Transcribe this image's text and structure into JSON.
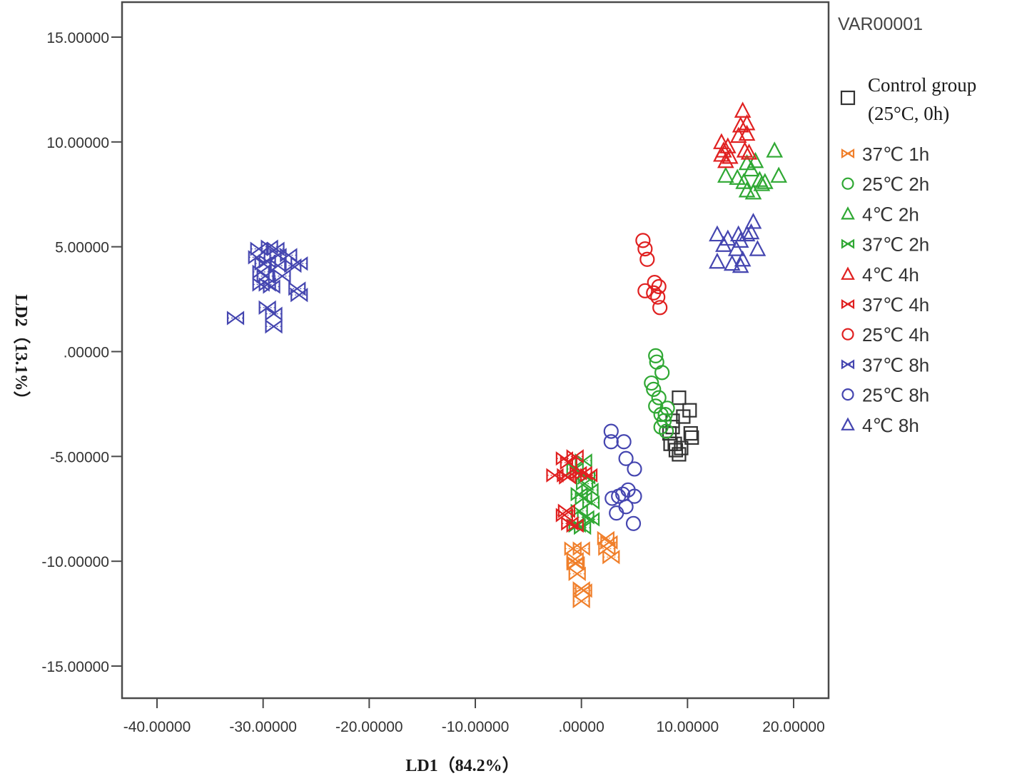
{
  "chart_data": {
    "type": "scatter",
    "title": "",
    "xlabel": "LD1（84.2%）",
    "ylabel": "LD2（13.1%）",
    "xlim": [
      -43.5,
      23.0
    ],
    "ylim": [
      -16.8,
      16.6
    ],
    "xticks": [
      -40,
      -30,
      -20,
      -10,
      0,
      10,
      20
    ],
    "xtick_labels": [
      "-40.00000",
      "-30.00000",
      "-20.00000",
      "-10.00000",
      ".00000",
      "10.00000",
      "20.00000"
    ],
    "yticks": [
      15,
      10,
      5,
      0,
      -5,
      -10,
      -15
    ],
    "ytick_labels": [
      "15.00000",
      "10.00000",
      "5.00000",
      ".00000",
      "-5.00000",
      "-10.00000",
      "-15.00000"
    ],
    "grid": false,
    "legend_title": "VAR00001",
    "legend_position": "right",
    "series": [
      {
        "name": "Control group (25°C, 0h)",
        "legend_lines": [
          "Control group",
          "(25°C, 0h)"
        ],
        "marker": "square",
        "color": "#333333",
        "points": [
          [
            9.2,
            -2.2
          ],
          [
            10.2,
            -2.8
          ],
          [
            9.6,
            -3.1
          ],
          [
            8.6,
            -3.3
          ],
          [
            10.3,
            -3.9
          ],
          [
            10.4,
            -4.1
          ],
          [
            8.3,
            -3.9
          ],
          [
            8.8,
            -4.4
          ],
          [
            9.4,
            -4.6
          ],
          [
            8.4,
            -4.4
          ],
          [
            9.2,
            -4.9
          ],
          [
            8.9,
            -4.7
          ],
          [
            8.6,
            -3.6
          ]
        ]
      },
      {
        "name": "37℃ 1h",
        "marker": "bowtie",
        "color": "#f07f2a",
        "points": [
          [
            -0.8,
            -9.4
          ],
          [
            0.0,
            -9.4
          ],
          [
            -0.6,
            -10.1
          ],
          [
            -0.4,
            -10.6
          ],
          [
            -0.5,
            -10.1
          ],
          [
            0.0,
            -11.3
          ],
          [
            0.2,
            -11.4
          ],
          [
            0.0,
            -11.9
          ],
          [
            2.3,
            -8.9
          ],
          [
            2.6,
            -9.1
          ],
          [
            2.4,
            -9.4
          ],
          [
            2.8,
            -9.8
          ],
          [
            -0.6,
            -9.9
          ]
        ]
      },
      {
        "name": "25℃ 2h",
        "marker": "circle",
        "color": "#2fa833",
        "points": [
          [
            7.0,
            -0.2
          ],
          [
            7.1,
            -0.5
          ],
          [
            7.6,
            -1.0
          ],
          [
            6.6,
            -1.5
          ],
          [
            6.8,
            -1.8
          ],
          [
            7.3,
            -2.2
          ],
          [
            7.0,
            -2.6
          ],
          [
            7.5,
            -3.0
          ],
          [
            7.9,
            -3.0
          ],
          [
            8.1,
            -2.7
          ],
          [
            7.8,
            -3.3
          ],
          [
            7.5,
            -3.6
          ],
          [
            8.0,
            -3.8
          ]
        ]
      },
      {
        "name": "4℃   2h",
        "marker": "triangle",
        "color": "#2fa833",
        "points": [
          [
            18.2,
            9.6
          ],
          [
            15.6,
            9.0
          ],
          [
            16.4,
            9.1
          ],
          [
            16.0,
            8.7
          ],
          [
            13.6,
            8.4
          ],
          [
            15.3,
            8.1
          ],
          [
            17.0,
            8.0
          ],
          [
            17.3,
            8.1
          ],
          [
            18.6,
            8.4
          ],
          [
            15.6,
            7.7
          ],
          [
            16.2,
            7.6
          ],
          [
            14.7,
            8.3
          ],
          [
            16.8,
            8.2
          ]
        ]
      },
      {
        "name": "37℃ 2h",
        "marker": "bowtie",
        "color": "#2fa833",
        "points": [
          [
            0.2,
            -5.2
          ],
          [
            -0.6,
            -5.6
          ],
          [
            0.3,
            -6.3
          ],
          [
            0.8,
            -6.6
          ],
          [
            -0.2,
            -6.8
          ],
          [
            0.2,
            -7.0
          ],
          [
            0.9,
            -7.2
          ],
          [
            -0.2,
            -7.6
          ],
          [
            0.4,
            -7.9
          ],
          [
            0.9,
            -8.0
          ],
          [
            0.1,
            -8.4
          ],
          [
            -0.4,
            -8.3
          ],
          [
            0.5,
            -6.0
          ]
        ]
      },
      {
        "name": "4℃   4h",
        "marker": "triangle",
        "color": "#e02020",
        "points": [
          [
            15.2,
            11.5
          ],
          [
            15.0,
            10.8
          ],
          [
            15.6,
            10.9
          ],
          [
            14.8,
            10.3
          ],
          [
            15.6,
            10.4
          ],
          [
            13.2,
            10.0
          ],
          [
            13.2,
            9.4
          ],
          [
            14.0,
            9.3
          ],
          [
            13.6,
            9.1
          ],
          [
            15.4,
            9.6
          ],
          [
            15.8,
            9.5
          ],
          [
            13.8,
            9.8
          ],
          [
            13.4,
            9.6
          ]
        ]
      },
      {
        "name": "37℃ 4h",
        "marker": "bowtie",
        "color": "#e02020",
        "points": [
          [
            -1.6,
            -5.1
          ],
          [
            -0.6,
            -5.0
          ],
          [
            -1.2,
            -5.3
          ],
          [
            -2.5,
            -5.9
          ],
          [
            -1.3,
            -6.0
          ],
          [
            -0.3,
            -5.8
          ],
          [
            0.2,
            -5.8
          ],
          [
            0.7,
            -5.9
          ],
          [
            -1.5,
            -5.9
          ],
          [
            -1.4,
            -7.6
          ],
          [
            -1.6,
            -7.8
          ],
          [
            -1.1,
            -8.2
          ],
          [
            -0.6,
            -8.3
          ]
        ]
      },
      {
        "name": "25℃ 4h",
        "marker": "circle",
        "color": "#e02020",
        "points": [
          [
            5.8,
            5.3
          ],
          [
            6.0,
            4.9
          ],
          [
            6.2,
            4.4
          ],
          [
            6.9,
            3.3
          ],
          [
            7.3,
            3.1
          ],
          [
            6.0,
            2.9
          ],
          [
            6.8,
            2.8
          ],
          [
            7.2,
            2.6
          ],
          [
            7.4,
            2.1
          ]
        ]
      },
      {
        "name": "37℃ 8h",
        "marker": "bowtie",
        "color": "#4546b0",
        "points": [
          [
            -30.4,
            4.9
          ],
          [
            -29.4,
            5.0
          ],
          [
            -28.8,
            4.9
          ],
          [
            -27.6,
            4.6
          ],
          [
            -30.6,
            4.5
          ],
          [
            -29.6,
            4.3
          ],
          [
            -28.6,
            4.1
          ],
          [
            -27.2,
            4.1
          ],
          [
            -26.6,
            4.2
          ],
          [
            -30.2,
            3.8
          ],
          [
            -29.8,
            3.6
          ],
          [
            -28.2,
            3.6
          ],
          [
            -30.2,
            3.2
          ],
          [
            -29.6,
            3.2
          ],
          [
            -29.2,
            3.1
          ],
          [
            -26.8,
            3.0
          ],
          [
            -26.6,
            2.7
          ],
          [
            -29.6,
            2.1
          ],
          [
            -29.0,
            1.8
          ],
          [
            -32.6,
            1.6
          ],
          [
            -29.0,
            1.2
          ],
          [
            -28.6,
            4.6
          ],
          [
            -30.0,
            4.2
          ]
        ]
      },
      {
        "name": "25℃ 8h",
        "marker": "circle",
        "color": "#4546b0",
        "points": [
          [
            2.8,
            -3.8
          ],
          [
            2.8,
            -4.3
          ],
          [
            4.0,
            -4.3
          ],
          [
            4.2,
            -5.1
          ],
          [
            5.0,
            -5.6
          ],
          [
            2.9,
            -7.0
          ],
          [
            4.4,
            -6.6
          ],
          [
            3.5,
            -6.9
          ],
          [
            5.0,
            -6.9
          ],
          [
            4.2,
            -7.4
          ],
          [
            3.3,
            -7.7
          ],
          [
            4.9,
            -8.2
          ],
          [
            3.9,
            -6.8
          ]
        ]
      },
      {
        "name": "4℃   8h",
        "marker": "triangle",
        "color": "#4546b0",
        "points": [
          [
            16.2,
            6.2
          ],
          [
            16.0,
            5.7
          ],
          [
            12.8,
            5.6
          ],
          [
            13.8,
            5.4
          ],
          [
            14.8,
            5.6
          ],
          [
            15.6,
            5.6
          ],
          [
            13.4,
            5.1
          ],
          [
            14.6,
            4.9
          ],
          [
            15.0,
            5.3
          ],
          [
            16.6,
            4.9
          ],
          [
            12.8,
            4.3
          ],
          [
            14.2,
            4.2
          ],
          [
            15.0,
            4.1
          ],
          [
            15.2,
            4.4
          ]
        ]
      }
    ]
  }
}
